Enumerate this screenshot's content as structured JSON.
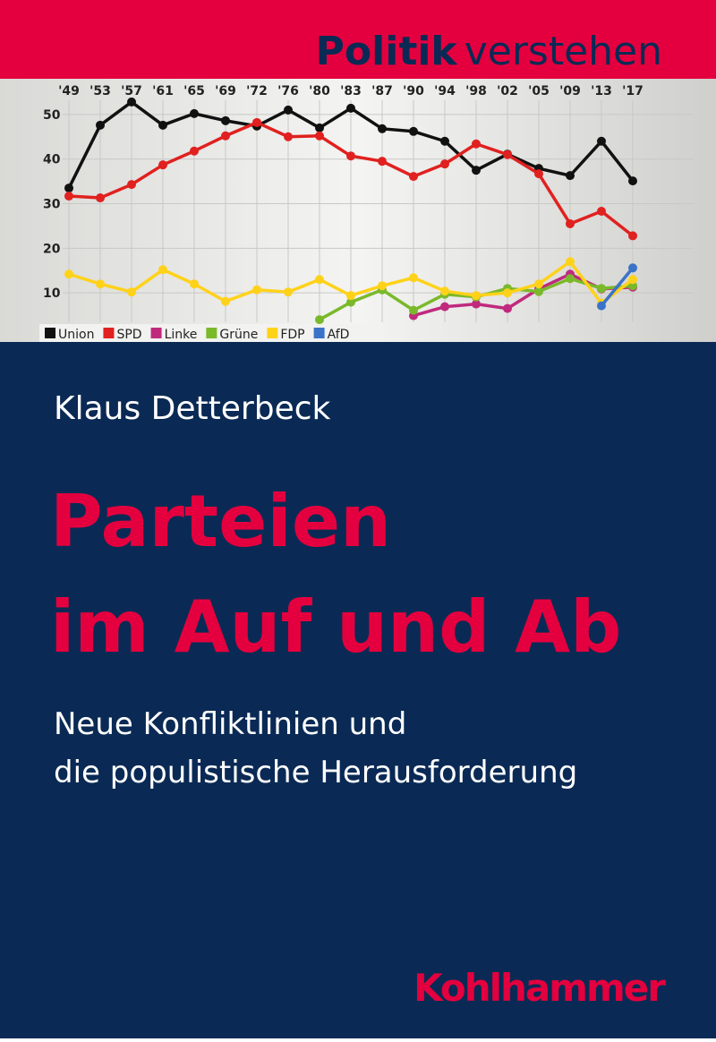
{
  "header": {
    "series_bold": "Politik",
    "series_rest": "verstehen"
  },
  "chart_data": {
    "type": "line",
    "categories": [
      "'49",
      "'53",
      "'57",
      "'61",
      "'65",
      "'69",
      "'72",
      "'76",
      "'80",
      "'83",
      "'87",
      "'90",
      "'94",
      "'98",
      "'02",
      "'05",
      "'09",
      "'13",
      "'17"
    ],
    "series": [
      {
        "name": "Union",
        "color": "#111111",
        "values": [
          33.5,
          47.6,
          52.8,
          47.6,
          50.2,
          48.6,
          47.4,
          51.0,
          47.0,
          51.4,
          46.8,
          46.2,
          44.0,
          37.5,
          41.1,
          37.9,
          36.3,
          44.0,
          35.1
        ]
      },
      {
        "name": "SPD",
        "color": "#e0211f",
        "values": [
          31.7,
          31.3,
          34.3,
          38.7,
          41.8,
          45.2,
          48.2,
          45.0,
          45.2,
          40.7,
          39.5,
          36.1,
          38.9,
          43.4,
          41.0,
          36.7,
          25.5,
          28.3,
          22.8
        ]
      },
      {
        "name": "Linke",
        "color": "#c02a7d",
        "values": [
          null,
          null,
          null,
          null,
          null,
          null,
          null,
          null,
          null,
          null,
          null,
          4.9,
          6.9,
          7.5,
          6.5,
          10.9,
          14.2,
          10.9,
          11.3
        ]
      },
      {
        "name": "Grüne",
        "color": "#7ab92a",
        "values": [
          null,
          null,
          null,
          null,
          null,
          null,
          null,
          null,
          4.0,
          7.9,
          10.7,
          6.1,
          9.7,
          9.1,
          11.0,
          10.3,
          13.2,
          11.0,
          11.6
        ]
      },
      {
        "name": "FDP",
        "color": "#ffd21a",
        "values": [
          14.2,
          12.0,
          10.2,
          15.2,
          12.0,
          8.1,
          10.7,
          10.2,
          13.0,
          9.4,
          11.6,
          13.4,
          10.4,
          9.4,
          10.0,
          12.0,
          17.0,
          7.7,
          13.0
        ]
      },
      {
        "name": "AfD",
        "color": "#3b73c8",
        "values": [
          null,
          null,
          null,
          null,
          null,
          null,
          null,
          null,
          null,
          null,
          null,
          null,
          null,
          null,
          null,
          null,
          null,
          7.1,
          15.6
        ]
      }
    ],
    "ylim": [
      -1,
      58
    ],
    "yticks": [
      10,
      20,
      30,
      40,
      50
    ],
    "grid": true
  },
  "author": "Klaus Detterbeck",
  "title": [
    "Parteien",
    "im Auf und Ab"
  ],
  "subtitle": [
    "Neue Konfliktlinien und",
    "die populistische Herausforderung"
  ],
  "publisher": "Kohlhammer"
}
